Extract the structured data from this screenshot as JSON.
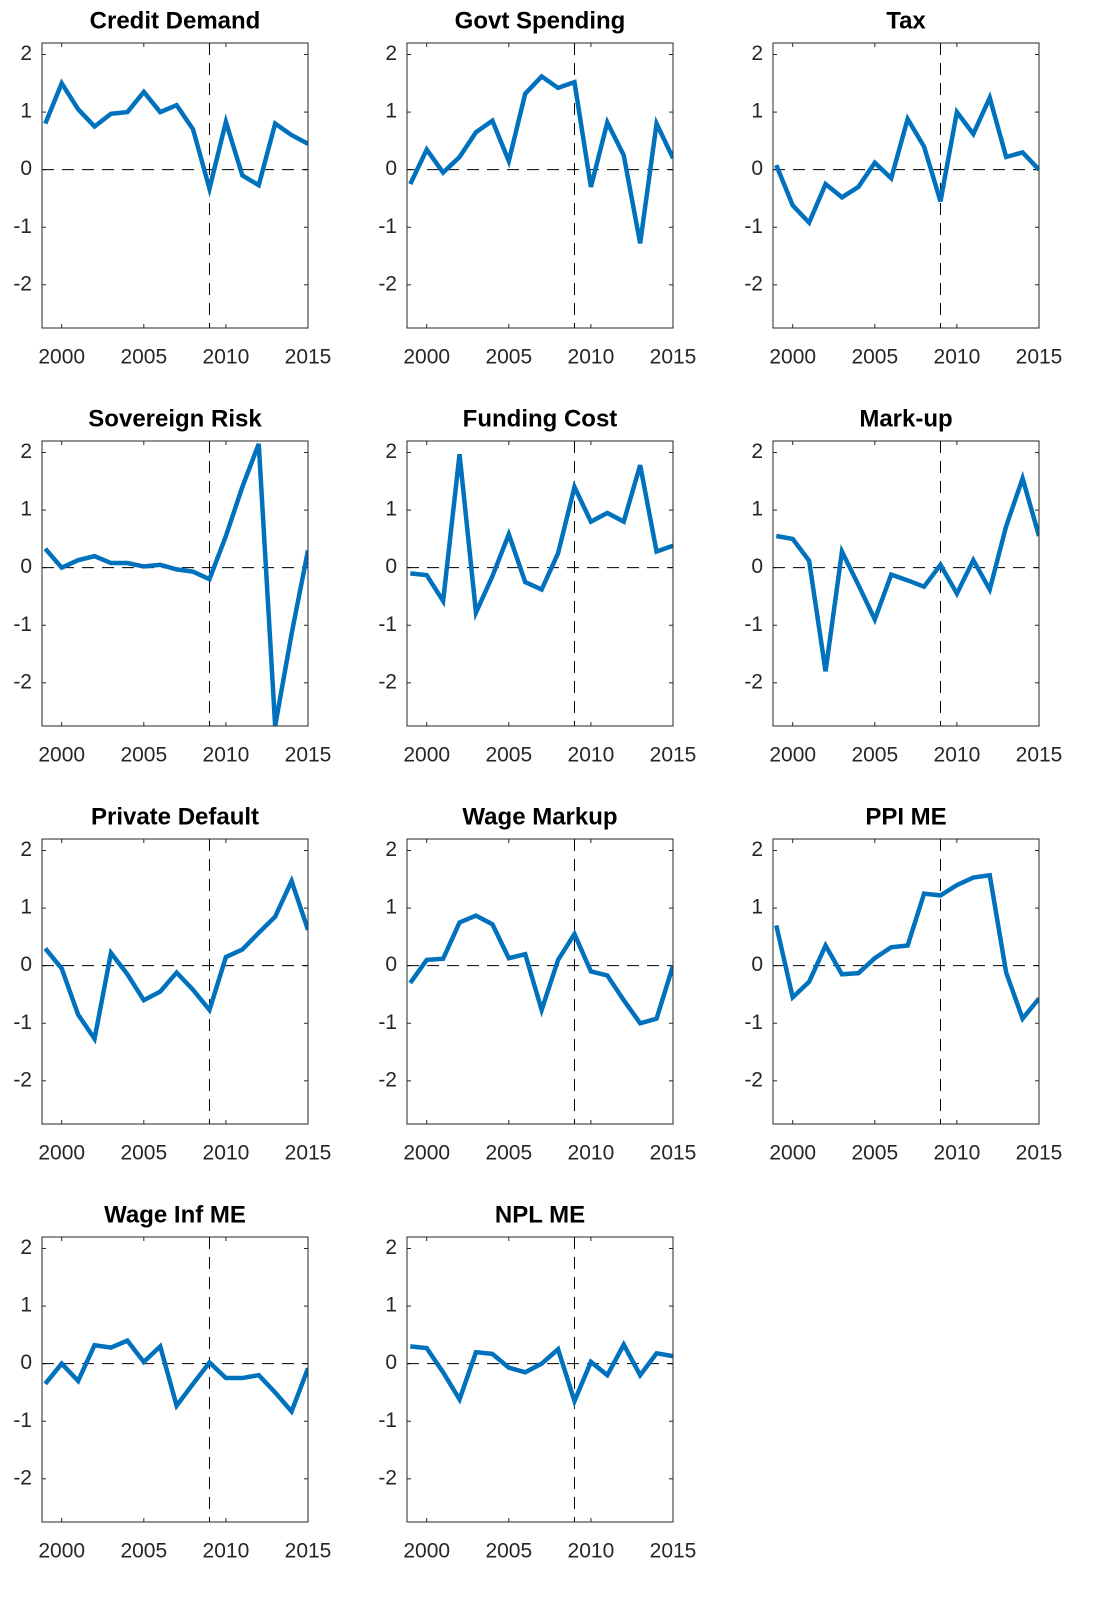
{
  "chart_data": [
    {
      "type": "line",
      "title": "Credit Demand",
      "x": [
        1999,
        2000,
        2001,
        2002,
        2003,
        2004,
        2005,
        2006,
        2007,
        2008,
        2009,
        2010,
        2011,
        2012,
        2013,
        2014,
        2015
      ],
      "values": [
        0.8,
        1.5,
        1.05,
        0.75,
        0.97,
        1.0,
        1.35,
        1.0,
        1.12,
        0.7,
        -0.33,
        0.83,
        -0.1,
        -0.27,
        0.8,
        0.6,
        0.45
      ],
      "color": "#0072bd",
      "xlim": [
        1998.8,
        2015
      ],
      "xticks": [
        2000,
        2005,
        2010,
        2015
      ],
      "ylim": [
        -2.75,
        2.2
      ],
      "yticks": [
        -2,
        -1,
        0,
        1,
        2
      ],
      "hline": 0,
      "vline": 2009
    },
    {
      "type": "line",
      "title": "Govt Spending",
      "x": [
        1999,
        2000,
        2001,
        2002,
        2003,
        2004,
        2005,
        2006,
        2007,
        2008,
        2009,
        2010,
        2011,
        2012,
        2013,
        2014,
        2015
      ],
      "values": [
        -0.25,
        0.35,
        -0.05,
        0.22,
        0.65,
        0.85,
        0.15,
        1.32,
        1.62,
        1.42,
        1.52,
        -0.3,
        0.82,
        0.25,
        -1.28,
        0.8,
        0.2
      ],
      "color": "#0072bd",
      "xlim": [
        1998.8,
        2015
      ],
      "xticks": [
        2000,
        2005,
        2010,
        2015
      ],
      "ylim": [
        -2.75,
        2.2
      ],
      "yticks": [
        -2,
        -1,
        0,
        1,
        2
      ],
      "hline": 0,
      "vline": 2009
    },
    {
      "type": "line",
      "title": "Tax",
      "x": [
        1999,
        2000,
        2001,
        2002,
        2003,
        2004,
        2005,
        2006,
        2007,
        2008,
        2009,
        2010,
        2011,
        2012,
        2013,
        2014,
        2015
      ],
      "values": [
        0.08,
        -0.62,
        -0.92,
        -0.25,
        -0.48,
        -0.3,
        0.12,
        -0.15,
        0.88,
        0.4,
        -0.55,
        1.0,
        0.62,
        1.25,
        0.22,
        0.3,
        0.0
      ],
      "color": "#0072bd",
      "xlim": [
        1998.8,
        2015
      ],
      "xticks": [
        2000,
        2005,
        2010,
        2015
      ],
      "ylim": [
        -2.75,
        2.2
      ],
      "yticks": [
        -2,
        -1,
        0,
        1,
        2
      ],
      "hline": 0,
      "vline": 2009
    },
    {
      "type": "line",
      "title": "Sovereign Risk",
      "x": [
        1999,
        2000,
        2001,
        2002,
        2003,
        2004,
        2005,
        2006,
        2007,
        2008,
        2009,
        2010,
        2011,
        2012,
        2013,
        2014,
        2015
      ],
      "values": [
        0.33,
        0.0,
        0.13,
        0.2,
        0.08,
        0.08,
        0.02,
        0.05,
        -0.03,
        -0.07,
        -0.2,
        0.55,
        1.4,
        2.15,
        -2.75,
        -1.15,
        0.3
      ],
      "color": "#0072bd",
      "xlim": [
        1998.8,
        2015
      ],
      "xticks": [
        2000,
        2005,
        2010,
        2015
      ],
      "ylim": [
        -2.75,
        2.2
      ],
      "yticks": [
        -2,
        -1,
        0,
        1,
        2
      ],
      "hline": 0,
      "vline": 2009
    },
    {
      "type": "line",
      "title": "Funding Cost",
      "x": [
        1999,
        2000,
        2001,
        2002,
        2003,
        2004,
        2005,
        2006,
        2007,
        2008,
        2009,
        2010,
        2011,
        2012,
        2013,
        2014,
        2015
      ],
      "values": [
        -0.1,
        -0.13,
        -0.58,
        1.97,
        -0.78,
        -0.15,
        0.58,
        -0.25,
        -0.38,
        0.25,
        1.4,
        0.8,
        0.95,
        0.8,
        1.78,
        0.28,
        0.38
      ],
      "color": "#0072bd",
      "xlim": [
        1998.8,
        2015
      ],
      "xticks": [
        2000,
        2005,
        2010,
        2015
      ],
      "ylim": [
        -2.75,
        2.2
      ],
      "yticks": [
        -2,
        -1,
        0,
        1,
        2
      ],
      "hline": 0,
      "vline": 2009
    },
    {
      "type": "line",
      "title": "Mark-up",
      "x": [
        1999,
        2000,
        2001,
        2002,
        2003,
        2004,
        2005,
        2006,
        2007,
        2008,
        2009,
        2010,
        2011,
        2012,
        2013,
        2014,
        2015
      ],
      "values": [
        0.55,
        0.5,
        0.12,
        -1.8,
        0.28,
        -0.3,
        -0.9,
        -0.12,
        -0.22,
        -0.33,
        0.05,
        -0.45,
        0.13,
        -0.38,
        0.72,
        1.55,
        0.55
      ],
      "color": "#0072bd",
      "xlim": [
        1998.8,
        2015
      ],
      "xticks": [
        2000,
        2005,
        2010,
        2015
      ],
      "ylim": [
        -2.75,
        2.2
      ],
      "yticks": [
        -2,
        -1,
        0,
        1,
        2
      ],
      "hline": 0,
      "vline": 2009
    },
    {
      "type": "line",
      "title": "Private Default",
      "x": [
        1999,
        2000,
        2001,
        2002,
        2003,
        2004,
        2005,
        2006,
        2007,
        2008,
        2009,
        2010,
        2011,
        2012,
        2013,
        2014,
        2015
      ],
      "values": [
        0.3,
        -0.05,
        -0.85,
        -1.27,
        0.22,
        -0.15,
        -0.6,
        -0.45,
        -0.12,
        -0.42,
        -0.77,
        0.15,
        0.28,
        0.57,
        0.85,
        1.47,
        0.62
      ],
      "color": "#0072bd",
      "xlim": [
        1998.8,
        2015
      ],
      "xticks": [
        2000,
        2005,
        2010,
        2015
      ],
      "ylim": [
        -2.75,
        2.2
      ],
      "yticks": [
        -2,
        -1,
        0,
        1,
        2
      ],
      "hline": 0,
      "vline": 2009
    },
    {
      "type": "line",
      "title": "Wage Markup",
      "x": [
        1999,
        2000,
        2001,
        2002,
        2003,
        2004,
        2005,
        2006,
        2007,
        2008,
        2009,
        2010,
        2011,
        2012,
        2013,
        2014,
        2015
      ],
      "values": [
        -0.3,
        0.1,
        0.12,
        0.75,
        0.87,
        0.72,
        0.13,
        0.2,
        -0.77,
        0.1,
        0.55,
        -0.1,
        -0.17,
        -0.6,
        -1.0,
        -0.92,
        0.0
      ],
      "color": "#0072bd",
      "xlim": [
        1998.8,
        2015
      ],
      "xticks": [
        2000,
        2005,
        2010,
        2015
      ],
      "ylim": [
        -2.75,
        2.2
      ],
      "yticks": [
        -2,
        -1,
        0,
        1,
        2
      ],
      "hline": 0,
      "vline": 2009
    },
    {
      "type": "line",
      "title": "PPI ME",
      "x": [
        1999,
        2000,
        2001,
        2002,
        2003,
        2004,
        2005,
        2006,
        2007,
        2008,
        2009,
        2010,
        2011,
        2012,
        2013,
        2014,
        2015
      ],
      "values": [
        0.7,
        -0.55,
        -0.28,
        0.35,
        -0.15,
        -0.13,
        0.13,
        0.32,
        0.35,
        1.25,
        1.22,
        1.4,
        1.53,
        1.57,
        -0.12,
        -0.92,
        -0.57
      ],
      "color": "#0072bd",
      "xlim": [
        1998.8,
        2015
      ],
      "xticks": [
        2000,
        2005,
        2010,
        2015
      ],
      "ylim": [
        -2.75,
        2.2
      ],
      "yticks": [
        -2,
        -1,
        0,
        1,
        2
      ],
      "hline": 0,
      "vline": 2009
    },
    {
      "type": "line",
      "title": "Wage Inf ME",
      "x": [
        1999,
        2000,
        2001,
        2002,
        2003,
        2004,
        2005,
        2006,
        2007,
        2008,
        2009,
        2010,
        2011,
        2012,
        2013,
        2014,
        2015
      ],
      "values": [
        -0.35,
        0.0,
        -0.3,
        0.32,
        0.28,
        0.4,
        0.03,
        0.3,
        -0.73,
        -0.35,
        0.02,
        -0.25,
        -0.25,
        -0.2,
        -0.5,
        -0.83,
        -0.08
      ],
      "color": "#0072bd",
      "xlim": [
        1998.8,
        2015
      ],
      "xticks": [
        2000,
        2005,
        2010,
        2015
      ],
      "ylim": [
        -2.75,
        2.2
      ],
      "yticks": [
        -2,
        -1,
        0,
        1,
        2
      ],
      "hline": 0,
      "vline": 2009
    },
    {
      "type": "line",
      "title": "NPL ME",
      "x": [
        1999,
        2000,
        2001,
        2002,
        2003,
        2004,
        2005,
        2006,
        2007,
        2008,
        2009,
        2010,
        2011,
        2012,
        2013,
        2014,
        2015
      ],
      "values": [
        0.3,
        0.27,
        -0.15,
        -0.62,
        0.2,
        0.17,
        -0.07,
        -0.15,
        0.0,
        0.25,
        -0.65,
        0.03,
        -0.2,
        0.33,
        -0.2,
        0.18,
        0.13
      ],
      "color": "#0072bd",
      "xlim": [
        1998.8,
        2015
      ],
      "xticks": [
        2000,
        2005,
        2010,
        2015
      ],
      "ylim": [
        -2.75,
        2.2
      ],
      "yticks": [
        -2,
        -1,
        0,
        1,
        2
      ],
      "hline": 0,
      "vline": 2009
    }
  ]
}
